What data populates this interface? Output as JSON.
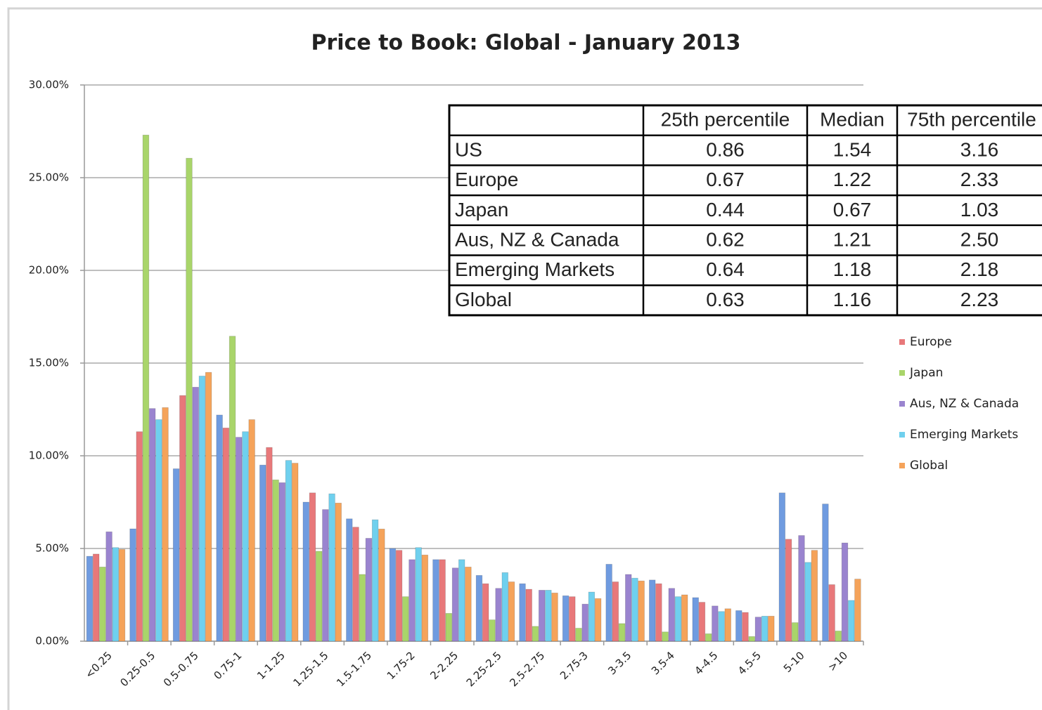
{
  "chart_data": {
    "type": "bar",
    "title": "Price to Book: Global - January 2013",
    "categories": [
      "<0.25",
      "0.25-0.5",
      "0.5-0.75",
      "0.75-1",
      "1-1.25",
      "1.25-1.5",
      "1.5-1.75",
      "1.75-2",
      "2-2.25",
      "2.25-2.5",
      "2.5-2.75",
      "2.75-3",
      "3-3.5",
      "3.5-4",
      "4-4.5",
      "4.5-5",
      "5-10",
      ">10"
    ],
    "series": [
      {
        "name": "US",
        "color": "#6f9be0",
        "values": [
          4.58,
          6.06,
          9.3,
          12.2,
          9.5,
          7.5,
          6.6,
          5.0,
          4.4,
          3.55,
          3.1,
          2.45,
          4.15,
          3.3,
          2.35,
          1.65,
          8.0,
          7.4
        ]
      },
      {
        "name": "Europe",
        "color": "#e8787a",
        "values": [
          4.7,
          11.3,
          13.25,
          11.5,
          10.45,
          8.0,
          6.15,
          4.9,
          4.4,
          3.1,
          2.8,
          2.4,
          3.2,
          3.1,
          2.1,
          1.55,
          5.5,
          3.05
        ]
      },
      {
        "name": "Japan",
        "color": "#a9d56a",
        "values": [
          4.0,
          27.3,
          26.05,
          16.45,
          8.7,
          4.85,
          3.6,
          2.4,
          1.5,
          1.15,
          0.8,
          0.7,
          0.95,
          0.5,
          0.4,
          0.25,
          1.0,
          0.55
        ]
      },
      {
        "name": "Aus, NZ & Canada",
        "color": "#9a84cf",
        "values": [
          5.9,
          12.55,
          13.7,
          11.0,
          8.55,
          7.1,
          5.55,
          4.4,
          3.95,
          2.85,
          2.75,
          2.0,
          3.6,
          2.85,
          1.9,
          1.3,
          5.7,
          5.3
        ]
      },
      {
        "name": "Emerging Markets",
        "color": "#6fd0ee",
        "values": [
          5.05,
          11.95,
          14.3,
          11.3,
          9.75,
          7.95,
          6.55,
          5.05,
          4.4,
          3.7,
          2.75,
          2.65,
          3.4,
          2.4,
          1.6,
          1.35,
          4.25,
          2.2
        ]
      },
      {
        "name": "Global",
        "color": "#f5a35a",
        "values": [
          4.95,
          12.6,
          14.5,
          11.95,
          9.6,
          7.45,
          6.05,
          4.65,
          4.0,
          3.2,
          2.6,
          2.3,
          3.25,
          2.5,
          1.75,
          1.35,
          4.9,
          3.35
        ]
      }
    ],
    "ylim": [
      0,
      30
    ],
    "yticks": [
      {
        "value": 0,
        "label": "0.00%"
      },
      {
        "value": 5,
        "label": "5.00%"
      },
      {
        "value": 10,
        "label": "10.00%"
      },
      {
        "value": 15,
        "label": "15.00%"
      },
      {
        "value": 20,
        "label": "20.00%"
      },
      {
        "value": 25,
        "label": "25.00%"
      },
      {
        "value": 30,
        "label": "30.00%"
      }
    ],
    "grid": true,
    "legend": "right"
  },
  "table": {
    "header": [
      "25th percentile",
      "Median",
      "75th percentile"
    ],
    "rows": [
      [
        "US",
        "0.86",
        "1.54",
        "3.16"
      ],
      [
        "Europe",
        "0.67",
        "1.22",
        "2.33"
      ],
      [
        "Japan",
        "0.44",
        "0.67",
        "1.03"
      ],
      [
        "Aus, NZ & Canada",
        "0.62",
        "1.21",
        "2.50"
      ],
      [
        "Emerging Markets",
        "0.64",
        "1.18",
        "2.18"
      ],
      [
        "Global",
        "0.63",
        "1.16",
        "2.23"
      ]
    ]
  }
}
